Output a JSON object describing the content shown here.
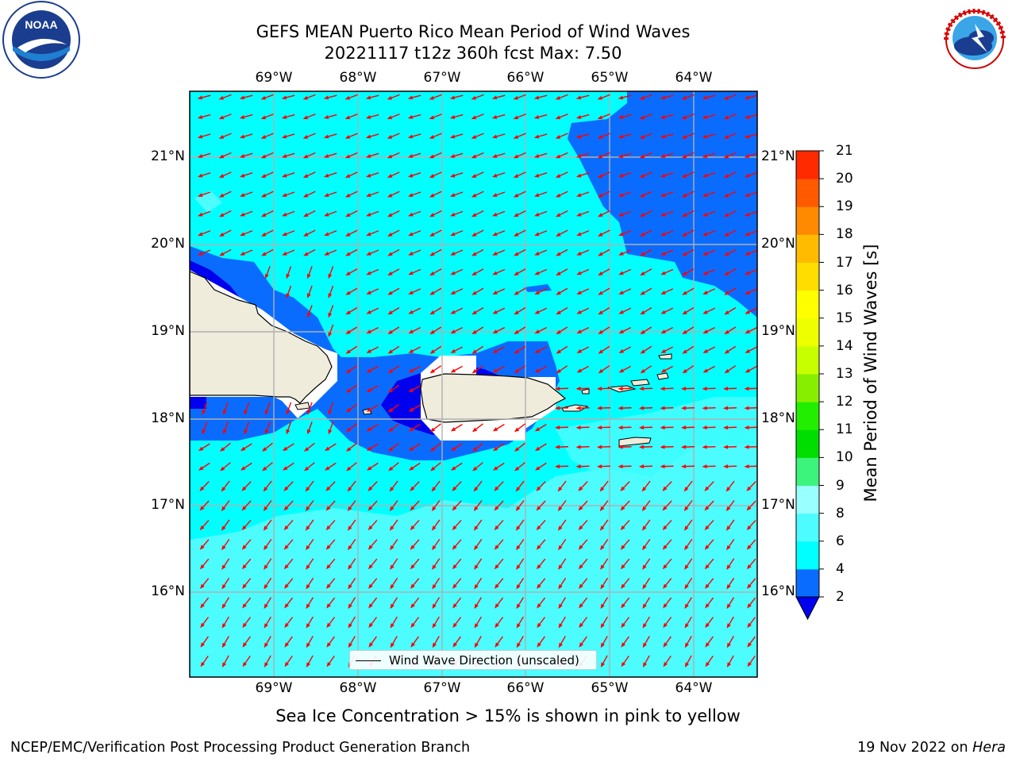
{
  "title": {
    "line1": "GEFS MEAN Puerto Rico Mean Period of Wind Waves",
    "line2": "20221117 t12z 360h fcst   Max: 7.50"
  },
  "map": {
    "lon_ticks": [
      "69°W",
      "68°W",
      "67°W",
      "66°W",
      "65°W",
      "64°W"
    ],
    "lat_ticks": [
      "21°N",
      "20°N",
      "19°N",
      "18°N",
      "17°N",
      "16°N"
    ],
    "land_color": "#efecdc",
    "background_color": "#00ffff",
    "arrow_color": "#ff0000",
    "legend": "Wind Wave Direction (unscaled)"
  },
  "colorbar": {
    "label": "Mean Period of Wind Waves [s]",
    "ticks": [
      "2",
      "4",
      "6",
      "8",
      "9",
      "10",
      "11",
      "12",
      "13",
      "14",
      "15",
      "16",
      "17",
      "18",
      "19",
      "20",
      "21"
    ],
    "colors": [
      "#0a6cff",
      "#00ffff",
      "#4cfcff",
      "#99ffff",
      "#3cf47c",
      "#00dd00",
      "#22ee00",
      "#88ee00",
      "#c8ff00",
      "#eeff00",
      "#ffff00",
      "#ffdd00",
      "#ffbb00",
      "#ff8a00",
      "#ff5a00",
      "#ff2a00",
      "#ff0000"
    ],
    "extend_color": "#0000ee"
  },
  "subcaption": "Sea Ice Concentration > 15% is shown in pink to yellow",
  "footer": {
    "left": "NCEP/EMC/Verification Post Processing Product Generation Branch",
    "right_prefix": "19 Nov 2022 on ",
    "right_host": "Hera"
  }
}
